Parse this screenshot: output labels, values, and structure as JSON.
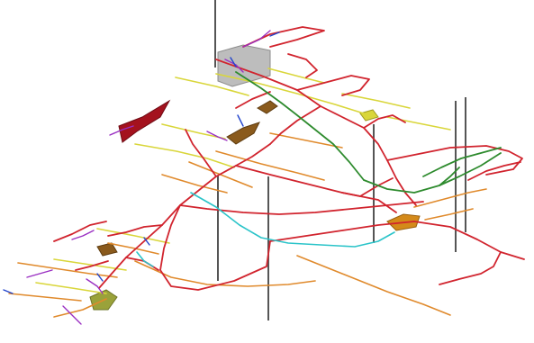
{
  "layer_colors": {
    "main_haulage": "#d1242e",
    "orange_drives": "#e08a2c",
    "yellow_drives": "#d9d63a",
    "green_level": "#2e8b2e",
    "cyan_drive": "#2bc4c9",
    "purple_drives": "#9a2fc2",
    "blue_segments": "#2244cc",
    "shafts": "#555555",
    "stopes_dark_red": "#a4121e",
    "stopes_brown": "#8a5a1c",
    "stopes_gray": "#bdbdbd",
    "stopes_olive": "#9aa23a",
    "stopes_amber": "#d48a1a"
  }
}
